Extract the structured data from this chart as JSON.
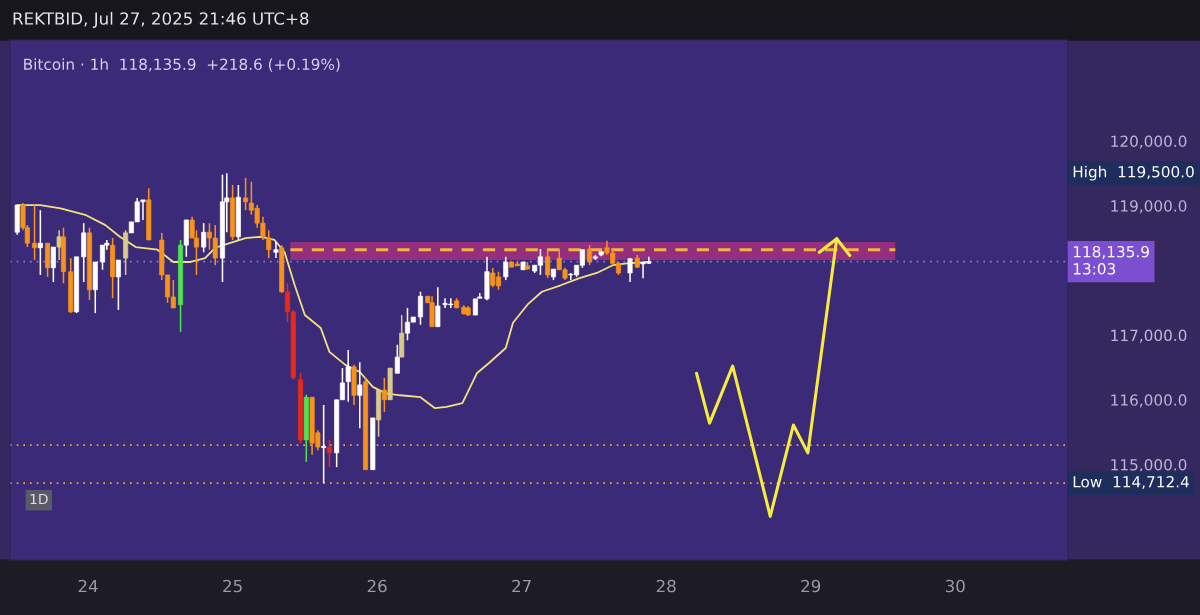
{
  "chart_data": {
    "type": "candlestick",
    "title": "REKTBID, Jul 27, 2025 21:46 UTC+8",
    "subtitle": "Bitcoin · 1h  118,135.9  +218.6 (+0.19%)",
    "annotations": [
      "1D",
      "High  119,500.0"
    ],
    "x": [
      23.51,
      23.55,
      23.58,
      23.63,
      23.67,
      23.72,
      23.76,
      23.8,
      23.83,
      23.88,
      23.92,
      23.97,
      24.01,
      24.05,
      24.1,
      24.13,
      24.17,
      24.21,
      24.26,
      24.3,
      24.34,
      24.38,
      24.42,
      24.51,
      24.55,
      24.59,
      24.64,
      24.68,
      24.72,
      24.75,
      24.8,
      24.84,
      24.88,
      24.93,
      24.96,
      25.0,
      25.04,
      25.09,
      25.13,
      25.17,
      25.21,
      25.25,
      25.3,
      25.34,
      25.38,
      25.42,
      25.47,
      25.51,
      25.55,
      25.59,
      25.63,
      25.67,
      25.72,
      25.76,
      25.8,
      25.84,
      25.88,
      25.92,
      25.97,
      26.01,
      26.05,
      26.09,
      26.14,
      26.17,
      26.21,
      26.25,
      26.3,
      26.35,
      26.38,
      26.42,
      26.47,
      26.51,
      26.55,
      26.6,
      26.63,
      26.68,
      26.71,
      26.76,
      26.8,
      26.84,
      26.89,
      26.93,
      26.97,
      27.01,
      27.04,
      27.09,
      27.13,
      27.18,
      27.22,
      27.26,
      27.3,
      27.34,
      27.38,
      27.42,
      27.47,
      27.51,
      27.55,
      27.59,
      27.63,
      27.67,
      27.75,
      27.8,
      27.84,
      27.88
    ],
    "ohlc": [
      [
        118590,
        119010,
        118550,
        119010
      ],
      [
        119010,
        119040,
        118620,
        118660
      ],
      [
        118660,
        118700,
        118360,
        118420
      ],
      [
        118420,
        119010,
        118160,
        118350
      ],
      [
        118350,
        118930,
        117930,
        118420
      ],
      [
        118420,
        118420,
        117900,
        118040
      ],
      [
        118040,
        118360,
        117820,
        118360
      ],
      [
        118360,
        118620,
        118160,
        118520
      ],
      [
        118520,
        118660,
        117800,
        117980
      ],
      [
        117980,
        118190,
        117340,
        117360
      ],
      [
        117360,
        118210,
        117340,
        118210
      ],
      [
        118210,
        118730,
        117820,
        118580
      ],
      [
        118580,
        118660,
        117540,
        117700
      ],
      [
        117700,
        118130,
        117340,
        118130
      ],
      [
        118130,
        118390,
        118010,
        118390
      ],
      [
        118390,
        118470,
        118320,
        118420
      ],
      [
        118390,
        118500,
        117570,
        117900
      ],
      [
        117900,
        118160,
        117390,
        118160
      ],
      [
        118190,
        118620,
        117930,
        118580
      ],
      [
        118580,
        118750,
        118580,
        118750
      ],
      [
        118750,
        119120,
        118750,
        119060
      ],
      [
        119060,
        119090,
        118780,
        119090
      ],
      [
        119090,
        119270,
        118470,
        118470
      ],
      [
        118470,
        118580,
        117850,
        117930
      ],
      [
        117930,
        117930,
        117500,
        117590
      ],
      [
        117590,
        117850,
        117420,
        117420
      ],
      [
        117470,
        118470,
        117050,
        118390
      ],
      [
        118390,
        118780,
        118210,
        118780
      ],
      [
        118780,
        118830,
        118500,
        118500
      ],
      [
        118500,
        118620,
        117930,
        118360
      ],
      [
        118360,
        118730,
        118280,
        118590
      ],
      [
        118590,
        118730,
        118320,
        118500
      ],
      [
        118500,
        118700,
        118080,
        118190
      ],
      [
        118190,
        119480,
        117820,
        119060
      ],
      [
        119060,
        119500,
        118590,
        119120
      ],
      [
        119120,
        119320,
        118470,
        118520
      ],
      [
        118520,
        119320,
        118470,
        119130
      ],
      [
        119120,
        119430,
        118930,
        119060
      ],
      [
        119040,
        119370,
        118860,
        118930
      ],
      [
        118960,
        119010,
        118660,
        118730
      ],
      [
        118730,
        118830,
        118470,
        118520
      ],
      [
        118500,
        118620,
        118190,
        118320
      ],
      [
        118280,
        118440,
        118190,
        118320
      ],
      [
        118350,
        118390,
        117650,
        117670
      ],
      [
        117670,
        117800,
        117200,
        117360
      ],
      [
        117360,
        117390,
        116310,
        116340
      ],
      [
        116310,
        116420,
        115330,
        115380
      ],
      [
        115380,
        116080,
        115040,
        116040
      ],
      [
        116040,
        116040,
        115150,
        115330
      ],
      [
        115490,
        115530,
        115220,
        115270
      ],
      [
        115260,
        115920,
        114712.4,
        115280
      ],
      [
        115270,
        115380,
        114960,
        115180
      ],
      [
        115180,
        116000,
        114960,
        116000
      ],
      [
        116000,
        116490,
        116000,
        116260
      ],
      [
        116280,
        116770,
        115970,
        116510
      ],
      [
        116510,
        116540,
        115920,
        116070
      ],
      [
        116070,
        116580,
        115560,
        116230
      ],
      [
        116280,
        116340,
        114920,
        114920
      ],
      [
        114920,
        115720,
        114920,
        115720
      ],
      [
        115690,
        116150,
        115430,
        116150
      ],
      [
        116150,
        116340,
        115810,
        116000
      ],
      [
        116000,
        116490,
        116000,
        116490
      ],
      [
        116410,
        116850,
        116410,
        116660
      ],
      [
        116660,
        117310,
        116660,
        117030
      ],
      [
        117030,
        117420,
        116920,
        117200
      ],
      [
        117200,
        117280,
        117200,
        117280
      ],
      [
        117280,
        117670,
        117160,
        117600
      ],
      [
        117600,
        117600,
        117500,
        117500
      ],
      [
        117500,
        117600,
        117130,
        117130
      ],
      [
        117130,
        117740,
        117130,
        117450
      ],
      [
        117470,
        117570,
        117420,
        117490
      ],
      [
        117470,
        117570,
        117420,
        117480
      ],
      [
        117530,
        117570,
        117420,
        117420
      ],
      [
        117430,
        117460,
        117320,
        117330
      ],
      [
        117420,
        117450,
        117300,
        117310
      ],
      [
        117310,
        117560,
        117310,
        117560
      ],
      [
        117570,
        117650,
        117570,
        117590
      ],
      [
        117560,
        118210,
        117540,
        117980
      ],
      [
        117960,
        118040,
        117740,
        117770
      ],
      [
        117900,
        117980,
        117700,
        117760
      ],
      [
        117900,
        118210,
        117850,
        118130
      ],
      [
        118130,
        118130,
        118050,
        118050
      ],
      [
        118100,
        118130,
        118070,
        118070
      ],
      [
        118010,
        118130,
        118010,
        118130
      ],
      [
        118070,
        118130,
        118010,
        118020
      ],
      [
        117990,
        118080,
        117960,
        118080
      ],
      [
        118080,
        118330,
        117930,
        118210
      ],
      [
        118210,
        118330,
        117880,
        117930
      ],
      [
        117900,
        118020,
        117850,
        118020
      ],
      [
        118190,
        118330,
        118010,
        118010
      ],
      [
        118010,
        118040,
        117850,
        117880
      ],
      [
        117930,
        117960,
        117850,
        117940
      ],
      [
        117930,
        118080,
        117900,
        118080
      ],
      [
        118080,
        118320,
        118040,
        118320
      ],
      [
        118330,
        118390,
        118080,
        118130
      ],
      [
        118190,
        118240,
        118160,
        118210
      ],
      [
        118240,
        118290,
        118220,
        118290
      ],
      [
        118350,
        118460,
        118240,
        118270
      ],
      [
        118270,
        118320,
        118080,
        118110
      ],
      [
        118110,
        118130,
        117930,
        117960
      ],
      [
        117960,
        118190,
        117820,
        118180
      ],
      [
        118190,
        118240,
        118040,
        118050
      ],
      [
        118100,
        118130,
        117880,
        118120
      ],
      [
        118110,
        118210,
        118100,
        118135.9
      ]
    ],
    "colors": [
      "#ffffff",
      "#f7931a",
      "#f7931a",
      "#f7931a",
      "#ffffff",
      "#f7931a",
      "#ffffff",
      "#d9c98c",
      "#f7931a",
      "#f7931a",
      "#ffffff",
      "#ffffff",
      "#f7931a",
      "#ffffff",
      "#ffffff",
      "#ffffff",
      "#f7931a",
      "#ffffff",
      "#d9c98c",
      "#ffffff",
      "#ffffff",
      "#ffffff",
      "#f7931a",
      "#f7931a",
      "#f7931a",
      "#f7931a",
      "#4fe34f",
      "#ffffff",
      "#f7931a",
      "#f7931a",
      "#ffffff",
      "#f7931a",
      "#f7931a",
      "#ffffff",
      "#ffffff",
      "#f7931a",
      "#ffffff",
      "#f7931a",
      "#f7931a",
      "#f7931a",
      "#f7931a",
      "#f7931a",
      "#ffffff",
      "#f7931a",
      "#e8291c",
      "#e8291c",
      "#e8291c",
      "#4fe34f",
      "#f7931a",
      "#f7931a",
      "#ffffff",
      "#e8291c",
      "#ffffff",
      "#ffffff",
      "#ffffff",
      "#f7931a",
      "#ffffff",
      "#f7931a",
      "#ffffff",
      "#d9c98c",
      "#f7931a",
      "#d9c98c",
      "#ffffff",
      "#d9c98c",
      "#ffffff",
      "#ffffff",
      "#ffffff",
      "#f7931a",
      "#f7931a",
      "#ffffff",
      "#ffffff",
      "#ffffff",
      "#f7931a",
      "#f7931a",
      "#f7931a",
      "#ffffff",
      "#ffffff",
      "#ffffff",
      "#f7931a",
      "#f7931a",
      "#ffffff",
      "#f7931a",
      "#f7931a",
      "#ffffff",
      "#f7931a",
      "#ffffff",
      "#ffffff",
      "#f7931a",
      "#ffffff",
      "#f7931a",
      "#f7931a",
      "#ffffff",
      "#ffffff",
      "#ffffff",
      "#f7931a",
      "#ffffff",
      "#ffffff",
      "#f7931a",
      "#f7931a",
      "#f7931a",
      "#ffffff",
      "#f7931a",
      "#ffffff",
      "#ffffff"
    ],
    "series": [
      {
        "type": "line",
        "color": "#f3e27a",
        "x": [
          23.51,
          23.67,
          23.81,
          23.98,
          24.12,
          24.22,
          24.33,
          24.48,
          24.59,
          24.71,
          24.81,
          24.88,
          24.98,
          25.09,
          25.2,
          25.29,
          25.36,
          25.43,
          25.5,
          25.61,
          25.67,
          25.78,
          25.88,
          25.97,
          26.06,
          26.16,
          26.3,
          26.4,
          26.48,
          26.59,
          26.69,
          26.78,
          26.89,
          26.94,
          27.04,
          27.14,
          27.27,
          27.4,
          27.52,
          27.63,
          27.73,
          27.87
        ],
        "values": [
          119010,
          119010,
          118960,
          118860,
          118700,
          118520,
          118360,
          118320,
          118130,
          118130,
          118190,
          118350,
          118420,
          118500,
          118520,
          118470,
          118280,
          117770,
          117310,
          117110,
          116740,
          116540,
          116430,
          116200,
          116100,
          116070,
          116040,
          115870,
          115890,
          115950,
          116410,
          116580,
          116800,
          117190,
          117470,
          117670,
          117770,
          117880,
          117960,
          118080,
          118110,
          118130
        ]
      },
      {
        "type": "line",
        "color": "#f5b342",
        "line_style": "dashed",
        "x": [
          25.4,
          29.585
        ],
        "values": [
          118320,
          118320
        ],
        "lower": [
          118160,
          118160
        ],
        "upper": [
          118440,
          118440
        ]
      },
      {
        "type": "line",
        "color": "#f7ec3b",
        "x": [
          28.21,
          28.3,
          28.46,
          28.72,
          28.88,
          28.98,
          29.18
        ],
        "values": [
          116410,
          115640,
          116520,
          114200,
          115610,
          115180,
          118490
        ]
      },
      {
        "type": "line",
        "color": "#f7ec3b",
        "x": [
          29.06,
          29.18,
          29.27
        ],
        "values": [
          118280,
          118490,
          118230
        ]
      }
    ],
    "ref_lines": [
      {
        "axis": "y",
        "value": 118135.9,
        "label": "118,135.9\n13:03",
        "line_style": "dotted",
        "color": "#8a7fbf"
      },
      {
        "axis": "y",
        "value": 115300,
        "line_style": "dotted",
        "color": "#f5a623"
      },
      {
        "axis": "y",
        "value": 114712.4,
        "label": "Low  114,712.4",
        "line_style": "dotted",
        "color": "#f5a623"
      }
    ],
    "xlim": [
      23.46,
      30.78
    ],
    "xticks": [
      24,
      25,
      26,
      27,
      28,
      29,
      30
    ],
    "ylim": [
      113524,
      121561
    ],
    "yticks": [
      {
        "value": 115000,
        "label": "115,000.0"
      },
      {
        "value": 116000,
        "label": "116,000.0"
      },
      {
        "value": 117000,
        "label": "117,000.0"
      },
      {
        "value": 119000,
        "label": "119,000.0"
      },
      {
        "value": 120000,
        "label": "120,000.0"
      }
    ]
  }
}
